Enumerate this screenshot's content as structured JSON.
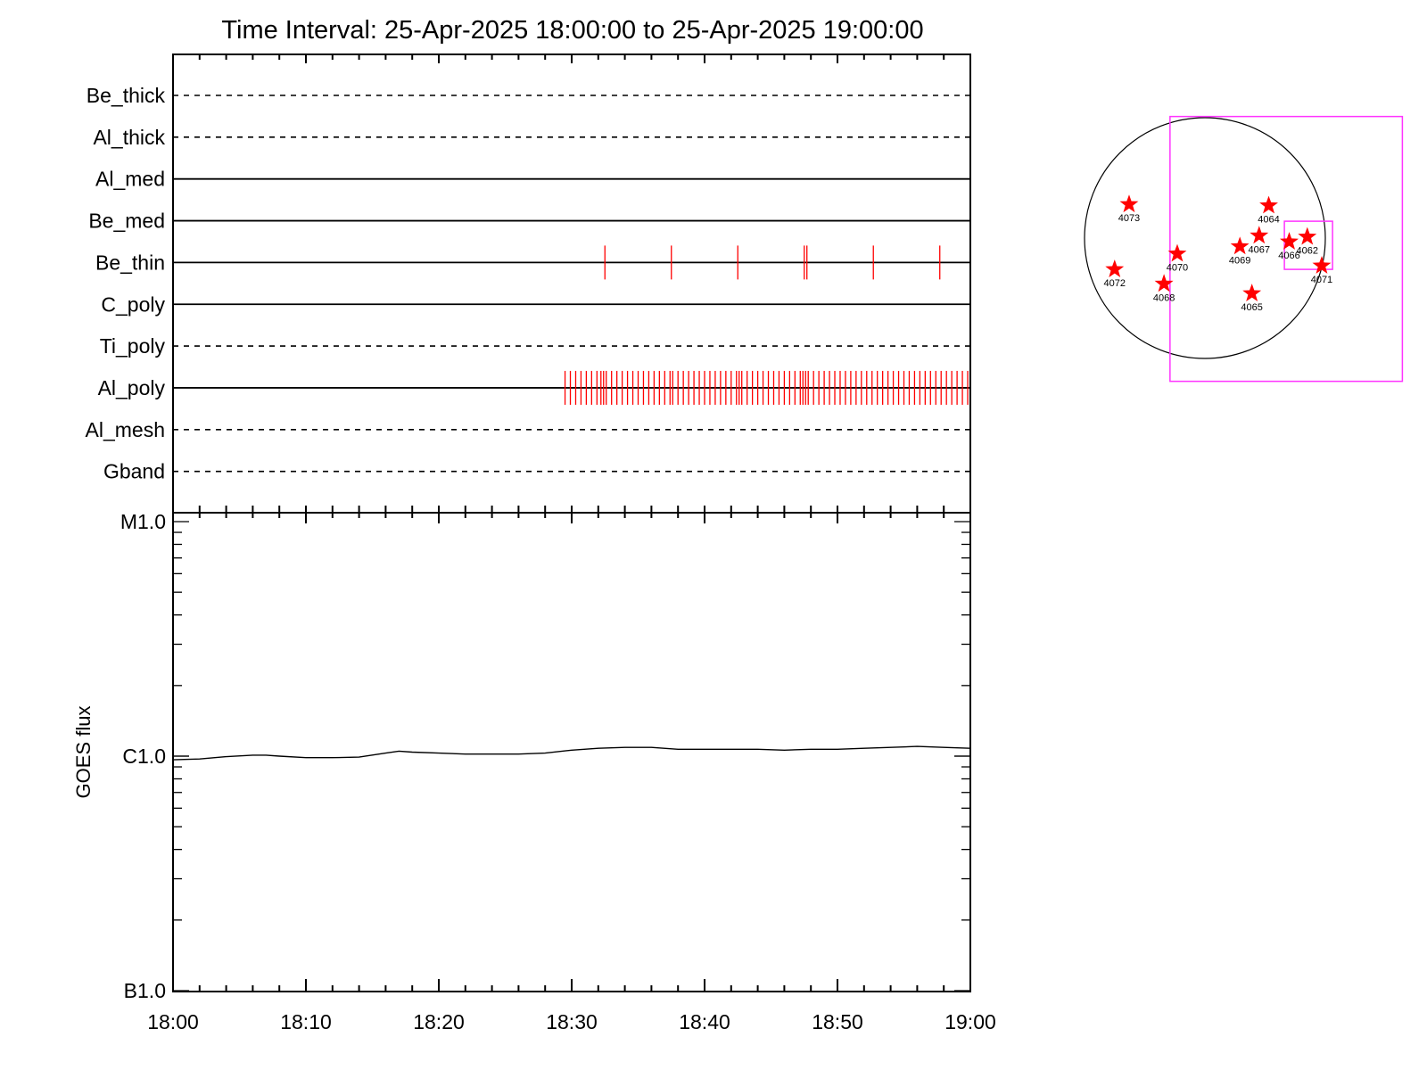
{
  "title": "Time Interval: 25-Apr-2025 18:00:00 to 25-Apr-2025 19:00:00",
  "colors": {
    "axis": "#000000",
    "event": "#ff0000",
    "fov": "#ff33ff",
    "star": "#ff0000",
    "disk": "#000000"
  },
  "chart_data": [
    {
      "type": "timeline",
      "title": "Time Interval: 25-Apr-2025 18:00:00 to 25-Apr-2025 19:00:00",
      "x_unit": "minutes after 18:00",
      "xlim": [
        0,
        60
      ],
      "channels": [
        {
          "name": "Be_thick",
          "style": "dashed",
          "events": []
        },
        {
          "name": "Al_thick",
          "style": "dashed",
          "events": []
        },
        {
          "name": "Al_med",
          "style": "solid",
          "events": []
        },
        {
          "name": "Be_med",
          "style": "solid",
          "events": []
        },
        {
          "name": "Be_thin",
          "style": "solid",
          "events": [
            32.5,
            37.5,
            42.5,
            47.5,
            47.7,
            52.7,
            57.7
          ]
        },
        {
          "name": "C_poly",
          "style": "solid",
          "events": []
        },
        {
          "name": "Ti_poly",
          "style": "dashed",
          "events": []
        },
        {
          "name": "Al_poly",
          "style": "solid",
          "events": [
            29.5,
            29.9,
            30.3,
            30.7,
            31.1,
            31.5,
            31.9,
            32.2,
            32.4,
            32.6,
            33.0,
            33.4,
            33.8,
            34.2,
            34.6,
            35.0,
            35.4,
            35.8,
            36.2,
            36.6,
            37.0,
            37.4,
            37.6,
            38.0,
            38.4,
            38.8,
            39.2,
            39.6,
            40.0,
            40.4,
            40.8,
            41.2,
            41.6,
            42.0,
            42.4,
            42.6,
            42.8,
            43.2,
            43.6,
            44.0,
            44.4,
            44.8,
            45.2,
            45.6,
            46.0,
            46.4,
            46.8,
            47.2,
            47.4,
            47.6,
            47.8,
            48.2,
            48.6,
            49.0,
            49.4,
            49.8,
            50.2,
            50.6,
            51.0,
            51.4,
            51.8,
            52.2,
            52.6,
            53.0,
            53.4,
            53.8,
            54.2,
            54.6,
            55.0,
            55.4,
            55.8,
            56.2,
            56.6,
            57.0,
            57.4,
            57.8,
            58.2,
            58.6,
            59.0,
            59.4,
            59.8
          ]
        },
        {
          "name": "Al_mesh",
          "style": "dashed",
          "events": []
        },
        {
          "name": "Gband",
          "style": "dashed",
          "events": []
        }
      ]
    },
    {
      "type": "line",
      "ylabel": "GOES flux",
      "xlabel": "",
      "x_unit": "minutes after 18:00",
      "y_scale": "log",
      "y_unit": "W/m^2",
      "xlim": [
        0,
        60
      ],
      "ylim": [
        1e-07,
        1e-05
      ],
      "x_ticks": [
        0,
        10,
        20,
        30,
        40,
        50,
        60
      ],
      "x_tick_labels": [
        "18:00",
        "18:10",
        "18:20",
        "18:30",
        "18:40",
        "18:50",
        "19:00"
      ],
      "y_ticks": [
        1e-07,
        1e-06,
        1e-05
      ],
      "y_tick_labels": [
        "B1.0",
        "C1.0",
        "M1.0"
      ],
      "series": [
        {
          "x": [
            0,
            2,
            4,
            6,
            7,
            8,
            10,
            12,
            14,
            16,
            17,
            18,
            20,
            22,
            24,
            26,
            28,
            30,
            32,
            34,
            36,
            38,
            40,
            42,
            44,
            46,
            48,
            50,
            52,
            54,
            56,
            58,
            60
          ],
          "values": [
            9.65e-07,
            9.72e-07,
            9.95e-07,
            1.01e-06,
            1.01e-06,
            1e-06,
            9.85e-07,
            9.85e-07,
            9.9e-07,
            1.03e-06,
            1.05e-06,
            1.04e-06,
            1.03e-06,
            1.02e-06,
            1.02e-06,
            1.02e-06,
            1.03e-06,
            1.06e-06,
            1.08e-06,
            1.09e-06,
            1.09e-06,
            1.07e-06,
            1.07e-06,
            1.07e-06,
            1.07e-06,
            1.06e-06,
            1.07e-06,
            1.07e-06,
            1.08e-06,
            1.09e-06,
            1.1e-06,
            1.09e-06,
            1.08e-06
          ]
        }
      ]
    },
    {
      "type": "scatter",
      "x_unit": "solar disk coordinate (disk radius = 1)",
      "y_unit": "solar disk coordinate (disk radius = 1)",
      "points": [
        {
          "label": "4073",
          "x": -0.63,
          "y": 0.28
        },
        {
          "label": "4064",
          "x": 0.53,
          "y": 0.27
        },
        {
          "label": "4067",
          "x": 0.45,
          "y": 0.02
        },
        {
          "label": "4066",
          "x": 0.7,
          "y": -0.03
        },
        {
          "label": "4062",
          "x": 0.85,
          "y": 0.01
        },
        {
          "label": "4069",
          "x": 0.29,
          "y": -0.07
        },
        {
          "label": "4070",
          "x": -0.23,
          "y": -0.13
        },
        {
          "label": "4072",
          "x": -0.75,
          "y": -0.26
        },
        {
          "label": "4068",
          "x": -0.34,
          "y": -0.38
        },
        {
          "label": "4071",
          "x": 0.97,
          "y": -0.23
        },
        {
          "label": "4065",
          "x": 0.39,
          "y": -0.46
        }
      ],
      "fov_large": {
        "x0": -0.29,
        "y0": 1.01,
        "x1": 1.64,
        "y1": -1.19
      },
      "fov_small": {
        "x0": 0.66,
        "y0": 0.14,
        "x1": 1.06,
        "y1": -0.26
      }
    }
  ]
}
